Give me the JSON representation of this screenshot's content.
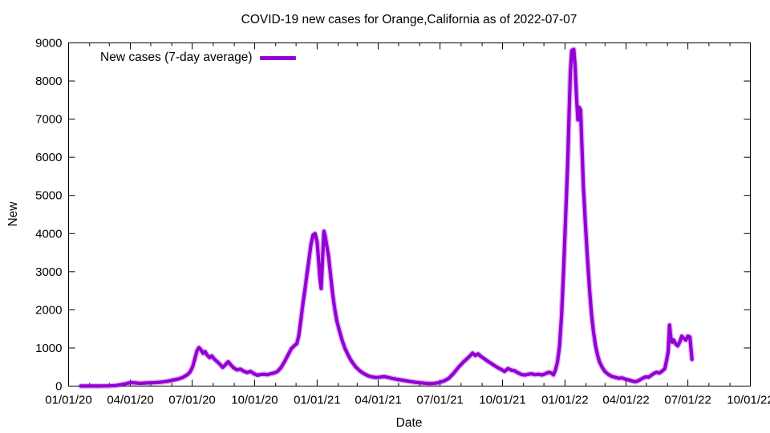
{
  "chart_data": {
    "type": "line",
    "title": "COVID-19 new cases for Orange,California as of 2022-07-07",
    "xlabel": "Date",
    "ylabel": "New",
    "xlim": [
      "2020-01-01",
      "2022-10-01"
    ],
    "ylim": [
      0,
      9000
    ],
    "grid": false,
    "legend_position": "top-left-inside",
    "background": "#ffffff",
    "axis_color": "#000000",
    "yticks": [
      0,
      1000,
      2000,
      3000,
      4000,
      5000,
      6000,
      7000,
      8000,
      9000
    ],
    "ytick_labels": [
      "0",
      "1000",
      "2000",
      "3000",
      "4000",
      "5000",
      "6000",
      "7000",
      "8000",
      "9000"
    ],
    "xticks": [
      {
        "date": "2020-01-01",
        "label": "01/01/20"
      },
      {
        "date": "2020-04-01",
        "label": "04/01/20"
      },
      {
        "date": "2020-07-01",
        "label": "07/01/20"
      },
      {
        "date": "2020-10-01",
        "label": "10/01/20"
      },
      {
        "date": "2021-01-01",
        "label": "01/01/21"
      },
      {
        "date": "2021-04-01",
        "label": "04/01/21"
      },
      {
        "date": "2021-07-01",
        "label": "07/01/21"
      },
      {
        "date": "2021-10-01",
        "label": "10/01/21"
      },
      {
        "date": "2022-01-01",
        "label": "01/01/22"
      },
      {
        "date": "2022-04-01",
        "label": "04/01/22"
      },
      {
        "date": "2022-07-01",
        "label": "07/01/22"
      },
      {
        "date": "2022-10-01",
        "label": "10/01/22"
      }
    ],
    "minor_xtick_interval": "1 month",
    "series": [
      {
        "name": "New cases (7-day average)",
        "color": "#9400D3",
        "points": [
          [
            "2020-01-19",
            2
          ],
          [
            "2020-02-02",
            3
          ],
          [
            "2020-02-16",
            3
          ],
          [
            "2020-03-01",
            6
          ],
          [
            "2020-03-10",
            15
          ],
          [
            "2020-03-18",
            35
          ],
          [
            "2020-03-25",
            60
          ],
          [
            "2020-04-01",
            95
          ],
          [
            "2020-04-08",
            85
          ],
          [
            "2020-04-15",
            72
          ],
          [
            "2020-04-22",
            80
          ],
          [
            "2020-04-29",
            88
          ],
          [
            "2020-05-06",
            92
          ],
          [
            "2020-05-13",
            100
          ],
          [
            "2020-05-20",
            112
          ],
          [
            "2020-05-27",
            130
          ],
          [
            "2020-06-03",
            160
          ],
          [
            "2020-06-10",
            185
          ],
          [
            "2020-06-17",
            225
          ],
          [
            "2020-06-24",
            300
          ],
          [
            "2020-06-28",
            370
          ],
          [
            "2020-07-02",
            520
          ],
          [
            "2020-07-05",
            720
          ],
          [
            "2020-07-08",
            920
          ],
          [
            "2020-07-11",
            1010
          ],
          [
            "2020-07-14",
            950
          ],
          [
            "2020-07-17",
            860
          ],
          [
            "2020-07-20",
            905
          ],
          [
            "2020-07-23",
            815
          ],
          [
            "2020-07-27",
            745
          ],
          [
            "2020-07-30",
            790
          ],
          [
            "2020-08-03",
            700
          ],
          [
            "2020-08-07",
            640
          ],
          [
            "2020-08-11",
            570
          ],
          [
            "2020-08-15",
            490
          ],
          [
            "2020-08-19",
            560
          ],
          [
            "2020-08-23",
            640
          ],
          [
            "2020-08-27",
            555
          ],
          [
            "2020-08-31",
            480
          ],
          [
            "2020-09-05",
            425
          ],
          [
            "2020-09-10",
            445
          ],
          [
            "2020-09-15",
            390
          ],
          [
            "2020-09-20",
            355
          ],
          [
            "2020-09-25",
            385
          ],
          [
            "2020-09-30",
            325
          ],
          [
            "2020-10-05",
            285
          ],
          [
            "2020-10-10",
            305
          ],
          [
            "2020-10-15",
            310
          ],
          [
            "2020-10-20",
            300
          ],
          [
            "2020-10-25",
            325
          ],
          [
            "2020-10-30",
            345
          ],
          [
            "2020-11-04",
            390
          ],
          [
            "2020-11-09",
            490
          ],
          [
            "2020-11-14",
            640
          ],
          [
            "2020-11-19",
            810
          ],
          [
            "2020-11-24",
            980
          ],
          [
            "2020-11-29",
            1070
          ],
          [
            "2020-12-02",
            1110
          ],
          [
            "2020-12-05",
            1320
          ],
          [
            "2020-12-08",
            1720
          ],
          [
            "2020-12-11",
            2150
          ],
          [
            "2020-12-14",
            2520
          ],
          [
            "2020-12-17",
            2930
          ],
          [
            "2020-12-20",
            3320
          ],
          [
            "2020-12-23",
            3720
          ],
          [
            "2020-12-26",
            3960
          ],
          [
            "2020-12-29",
            4000
          ],
          [
            "2021-01-01",
            3780
          ],
          [
            "2021-01-03",
            3350
          ],
          [
            "2021-01-05",
            2850
          ],
          [
            "2021-01-07",
            2560
          ],
          [
            "2021-01-09",
            3320
          ],
          [
            "2021-01-11",
            4060
          ],
          [
            "2021-01-13",
            3920
          ],
          [
            "2021-01-15",
            3710
          ],
          [
            "2021-01-18",
            3380
          ],
          [
            "2021-01-21",
            2880
          ],
          [
            "2021-01-24",
            2400
          ],
          [
            "2021-01-27",
            2020
          ],
          [
            "2021-01-30",
            1710
          ],
          [
            "2021-02-03",
            1440
          ],
          [
            "2021-02-07",
            1190
          ],
          [
            "2021-02-11",
            990
          ],
          [
            "2021-02-15",
            840
          ],
          [
            "2021-02-19",
            700
          ],
          [
            "2021-02-23",
            595
          ],
          [
            "2021-02-27",
            500
          ],
          [
            "2021-03-05",
            400
          ],
          [
            "2021-03-11",
            325
          ],
          [
            "2021-03-17",
            270
          ],
          [
            "2021-03-23",
            240
          ],
          [
            "2021-03-29",
            225
          ],
          [
            "2021-04-04",
            235
          ],
          [
            "2021-04-10",
            250
          ],
          [
            "2021-04-16",
            225
          ],
          [
            "2021-04-22",
            200
          ],
          [
            "2021-04-28",
            180
          ],
          [
            "2021-05-05",
            158
          ],
          [
            "2021-05-12",
            138
          ],
          [
            "2021-05-19",
            118
          ],
          [
            "2021-05-26",
            100
          ],
          [
            "2021-06-02",
            88
          ],
          [
            "2021-06-09",
            75
          ],
          [
            "2021-06-16",
            65
          ],
          [
            "2021-06-23",
            72
          ],
          [
            "2021-06-30",
            95
          ],
          [
            "2021-07-07",
            135
          ],
          [
            "2021-07-14",
            205
          ],
          [
            "2021-07-21",
            335
          ],
          [
            "2021-07-28",
            490
          ],
          [
            "2021-08-04",
            625
          ],
          [
            "2021-08-09",
            705
          ],
          [
            "2021-08-14",
            790
          ],
          [
            "2021-08-18",
            865
          ],
          [
            "2021-08-22",
            800
          ],
          [
            "2021-08-26",
            845
          ],
          [
            "2021-08-30",
            780
          ],
          [
            "2021-09-04",
            720
          ],
          [
            "2021-09-09",
            655
          ],
          [
            "2021-09-14",
            600
          ],
          [
            "2021-09-19",
            540
          ],
          [
            "2021-09-24",
            485
          ],
          [
            "2021-09-29",
            440
          ],
          [
            "2021-10-04",
            385
          ],
          [
            "2021-10-09",
            460
          ],
          [
            "2021-10-14",
            420
          ],
          [
            "2021-10-19",
            400
          ],
          [
            "2021-10-24",
            345
          ],
          [
            "2021-10-29",
            305
          ],
          [
            "2021-11-03",
            290
          ],
          [
            "2021-11-08",
            312
          ],
          [
            "2021-11-13",
            322
          ],
          [
            "2021-11-18",
            300
          ],
          [
            "2021-11-23",
            312
          ],
          [
            "2021-11-28",
            292
          ],
          [
            "2021-12-03",
            322
          ],
          [
            "2021-12-08",
            362
          ],
          [
            "2021-12-12",
            342
          ],
          [
            "2021-12-15",
            295
          ],
          [
            "2021-12-18",
            420
          ],
          [
            "2021-12-21",
            640
          ],
          [
            "2021-12-24",
            1050
          ],
          [
            "2021-12-27",
            1850
          ],
          [
            "2021-12-30",
            3050
          ],
          [
            "2022-01-02",
            4450
          ],
          [
            "2022-01-05",
            5850
          ],
          [
            "2022-01-07",
            7100
          ],
          [
            "2022-01-09",
            8250
          ],
          [
            "2022-01-11",
            8800
          ],
          [
            "2022-01-14",
            8830
          ],
          [
            "2022-01-16",
            8380
          ],
          [
            "2022-01-18",
            7580
          ],
          [
            "2022-01-20",
            6980
          ],
          [
            "2022-01-22",
            7310
          ],
          [
            "2022-01-24",
            7240
          ],
          [
            "2022-01-26",
            6280
          ],
          [
            "2022-01-28",
            5280
          ],
          [
            "2022-01-31",
            4280
          ],
          [
            "2022-02-03",
            3380
          ],
          [
            "2022-02-06",
            2580
          ],
          [
            "2022-02-09",
            1900
          ],
          [
            "2022-02-12",
            1420
          ],
          [
            "2022-02-15",
            1060
          ],
          [
            "2022-02-18",
            810
          ],
          [
            "2022-02-21",
            630
          ],
          [
            "2022-02-25",
            485
          ],
          [
            "2022-03-01",
            380
          ],
          [
            "2022-03-06",
            305
          ],
          [
            "2022-03-11",
            255
          ],
          [
            "2022-03-16",
            232
          ],
          [
            "2022-03-21",
            205
          ],
          [
            "2022-03-26",
            215
          ],
          [
            "2022-03-31",
            182
          ],
          [
            "2022-04-05",
            160
          ],
          [
            "2022-04-09",
            138
          ],
          [
            "2022-04-14",
            112
          ],
          [
            "2022-04-18",
            132
          ],
          [
            "2022-04-22",
            172
          ],
          [
            "2022-04-26",
            212
          ],
          [
            "2022-04-30",
            242
          ],
          [
            "2022-05-04",
            232
          ],
          [
            "2022-05-08",
            282
          ],
          [
            "2022-05-12",
            332
          ],
          [
            "2022-05-16",
            362
          ],
          [
            "2022-05-20",
            342
          ],
          [
            "2022-05-24",
            392
          ],
          [
            "2022-05-28",
            455
          ],
          [
            "2022-05-31",
            705
          ],
          [
            "2022-06-02",
            905
          ],
          [
            "2022-06-04",
            1600
          ],
          [
            "2022-06-06",
            1255
          ],
          [
            "2022-06-08",
            1150
          ],
          [
            "2022-06-10",
            1210
          ],
          [
            "2022-06-13",
            1105
          ],
          [
            "2022-06-16",
            1055
          ],
          [
            "2022-06-19",
            1155
          ],
          [
            "2022-06-22",
            1310
          ],
          [
            "2022-06-25",
            1255
          ],
          [
            "2022-06-28",
            1205
          ],
          [
            "2022-07-01",
            1310
          ],
          [
            "2022-07-04",
            1285
          ],
          [
            "2022-07-07",
            700
          ]
        ]
      }
    ]
  }
}
